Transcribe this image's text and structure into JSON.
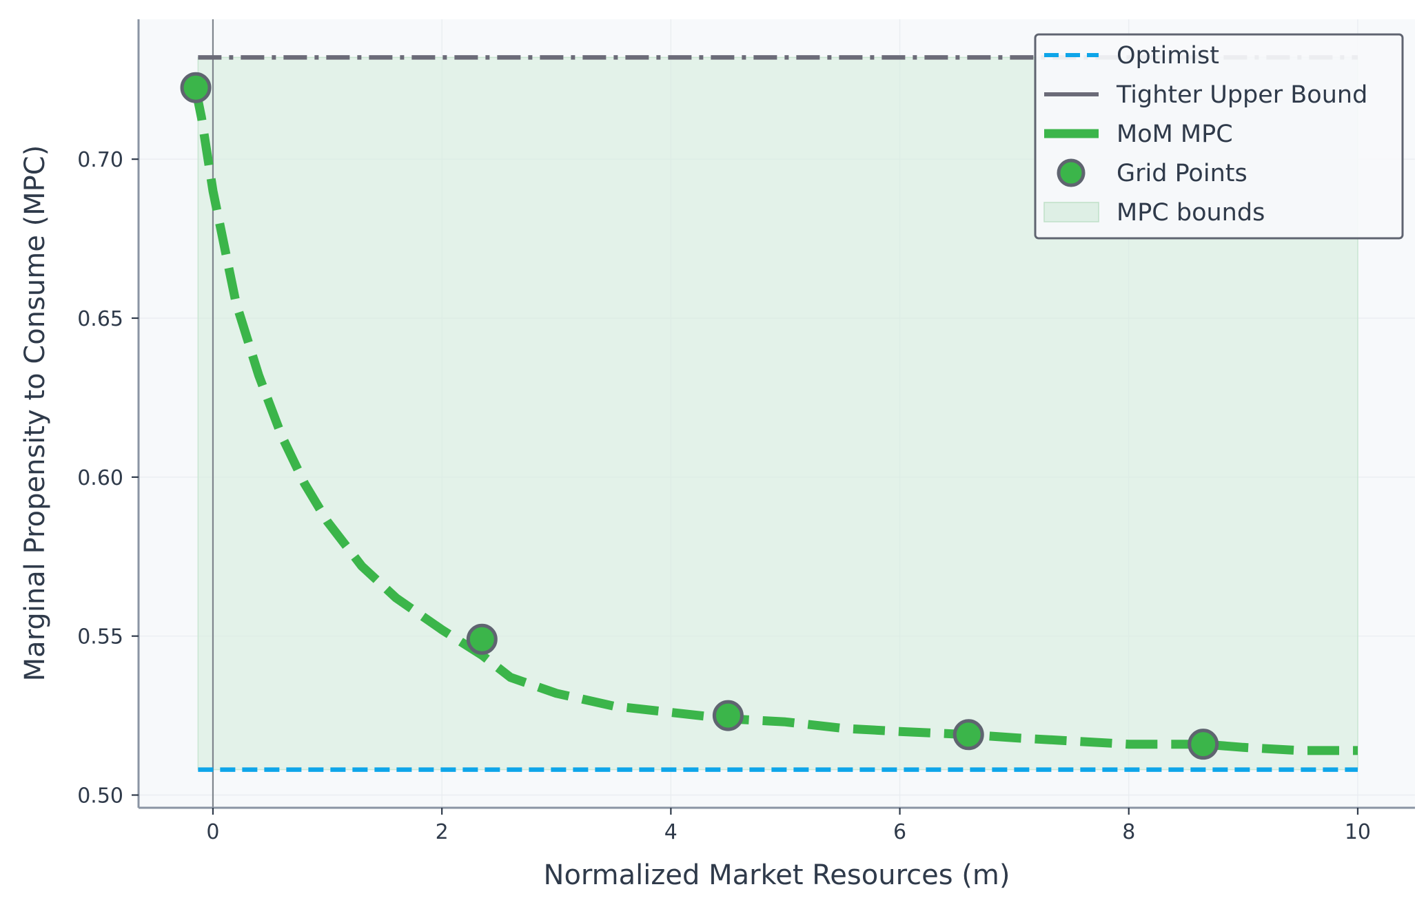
{
  "chart_data": {
    "type": "line",
    "xlabel": "Normalized Market Resources (m)",
    "ylabel": "Marginal Propensity to Consume (MPC)",
    "xlim": [
      -0.65,
      10.5
    ],
    "ylim": [
      0.496,
      0.744
    ],
    "x_ticks": [
      0,
      2,
      4,
      6,
      8,
      10
    ],
    "x_tick_labels": [
      "0",
      "2",
      "4",
      "6",
      "8",
      "10"
    ],
    "y_ticks": [
      0.5,
      0.55,
      0.6,
      0.65,
      0.7
    ],
    "y_tick_labels": [
      "0.50",
      "0.55",
      "0.60",
      "0.65",
      "0.70"
    ],
    "grid": true,
    "legend_position": "top-right",
    "zero_line_x": 0,
    "series": [
      {
        "name": "Optimist",
        "style": "dashed",
        "color": "#0ea5e9",
        "x": [
          -0.13,
          10.0
        ],
        "y": [
          0.508,
          0.508
        ]
      },
      {
        "name": "Tighter Upper Bound",
        "style": "dash-dot",
        "color": "#6b6b78",
        "x": [
          -0.13,
          10.0
        ],
        "y": [
          0.732,
          0.732
        ]
      },
      {
        "name": "MoM MPC",
        "style": "dashed",
        "color": "#3bb54a",
        "x": [
          -0.15,
          -0.1,
          0.0,
          0.2,
          0.4,
          0.6,
          0.8,
          1.0,
          1.3,
          1.6,
          2.0,
          2.35,
          2.6,
          3.0,
          3.5,
          4.0,
          4.5,
          5.0,
          5.5,
          6.0,
          6.6,
          7.0,
          7.5,
          8.0,
          8.65,
          9.0,
          9.5,
          10.0
        ],
        "y": [
          0.722,
          0.713,
          0.69,
          0.655,
          0.632,
          0.613,
          0.598,
          0.586,
          0.572,
          0.562,
          0.552,
          0.544,
          0.537,
          0.532,
          0.528,
          0.526,
          0.524,
          0.523,
          0.521,
          0.52,
          0.519,
          0.518,
          0.517,
          0.516,
          0.516,
          0.515,
          0.514,
          0.514
        ]
      },
      {
        "name": "Grid Points",
        "style": "markers",
        "color": "#3bb54a",
        "edge_color": "#5f6470",
        "x": [
          -0.15,
          2.35,
          4.5,
          6.6,
          8.65
        ],
        "y": [
          0.7225,
          0.549,
          0.525,
          0.519,
          0.516
        ]
      },
      {
        "name": "MPC bounds",
        "style": "fill",
        "color": "#d6ecdd",
        "x": [
          -0.13,
          10.0
        ],
        "lower": 0.508,
        "upper": 0.732
      }
    ]
  },
  "colors": {
    "plot_background": "#f7f9fb",
    "axis_spine": "#8a94a3",
    "text": "#2f3a4a",
    "grid": "#e8ecf0",
    "zero_line": "#7f858d"
  }
}
